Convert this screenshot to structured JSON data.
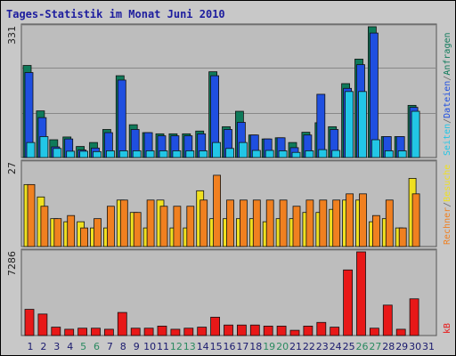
{
  "title": "Tages-Statistik im Monat Juni 2010",
  "colors": {
    "anfragen": "#0f7a5a",
    "dateien": "#1f4fe0",
    "seiten": "#22c6e6",
    "besuche": "#f0e020",
    "rechner": "#f08020",
    "kb": "#e81818",
    "weekend": "#2a8a60",
    "weekday": "#1a1a6e",
    "separator": "#6a6a6a"
  },
  "chart_data": [
    {
      "type": "bar",
      "title": "",
      "y_max_label": "331",
      "ylim": [
        0,
        331
      ],
      "series_labels": [
        "Anfragen",
        "Dateien",
        "Seiten"
      ],
      "categories": [
        "1",
        "2",
        "3",
        "4",
        "5",
        "6",
        "7",
        "8",
        "9",
        "10",
        "11",
        "12",
        "13",
        "14",
        "15",
        "16",
        "17",
        "18",
        "19",
        "20",
        "21",
        "22",
        "23",
        "24",
        "25",
        "26",
        "27",
        "28",
        "29",
        "30",
        "31"
      ],
      "series": [
        {
          "name": "Anfragen",
          "values": [
            233,
            118,
            45,
            52,
            28,
            38,
            71,
            207,
            83,
            63,
            60,
            60,
            60,
            67,
            217,
            78,
            117,
            57,
            47,
            50,
            38,
            64,
            88,
            78,
            187,
            249,
            331,
            53,
            53,
            132,
            0
          ]
        },
        {
          "name": "Dateien",
          "values": [
            215,
            101,
            27,
            47,
            19,
            24,
            63,
            196,
            71,
            63,
            55,
            55,
            55,
            60,
            207,
            71,
            89,
            57,
            47,
            50,
            25,
            57,
            160,
            71,
            175,
            235,
            315,
            53,
            53,
            127,
            0
          ]
        },
        {
          "name": "Seiten",
          "values": [
            38,
            53,
            23,
            16,
            16,
            15,
            17,
            17,
            17,
            17,
            17,
            17,
            17,
            17,
            38,
            23,
            38,
            18,
            18,
            17,
            13,
            17,
            20,
            18,
            167,
            167,
            45,
            17,
            17,
            117,
            0
          ]
        }
      ]
    },
    {
      "type": "bar",
      "title": "",
      "y_max_label": "27",
      "ylim": [
        0,
        27
      ],
      "series_labels": [
        "Besuche",
        "Rechner"
      ],
      "categories": [
        "1",
        "2",
        "3",
        "4",
        "5",
        "6",
        "7",
        "8",
        "9",
        "10",
        "11",
        "12",
        "13",
        "14",
        "15",
        "16",
        "17",
        "18",
        "19",
        "20",
        "21",
        "22",
        "23",
        "24",
        "25",
        "26",
        "27",
        "28",
        "29",
        "30",
        "31"
      ],
      "series": [
        {
          "name": "Besuche",
          "values": [
            20,
            16,
            9,
            8,
            8,
            6,
            6,
            15,
            11,
            6,
            15,
            6,
            6,
            18,
            9,
            9,
            9,
            9,
            8,
            9,
            9,
            11,
            11,
            12,
            15,
            15,
            8,
            9,
            6,
            22,
            0
          ]
        },
        {
          "name": "Rechner",
          "values": [
            20,
            13,
            9,
            10,
            6,
            9,
            13,
            15,
            11,
            15,
            13,
            13,
            13,
            15,
            23,
            15,
            15,
            15,
            15,
            15,
            13,
            15,
            15,
            15,
            17,
            17,
            10,
            15,
            6,
            17,
            0
          ]
        }
      ]
    },
    {
      "type": "bar",
      "title": "",
      "y_max_label": "7286",
      "ylim": [
        0,
        7286
      ],
      "series_labels": [
        "kB"
      ],
      "categories": [
        "1",
        "2",
        "3",
        "4",
        "5",
        "6",
        "7",
        "8",
        "9",
        "10",
        "11",
        "12",
        "13",
        "14",
        "15",
        "16",
        "17",
        "18",
        "19",
        "20",
        "21",
        "22",
        "23",
        "24",
        "25",
        "26",
        "27",
        "28",
        "29",
        "30",
        "31"
      ],
      "series": [
        {
          "name": "kB",
          "values": [
            2283,
            1872,
            731,
            548,
            640,
            640,
            548,
            2009,
            640,
            640,
            822,
            548,
            640,
            731,
            1598,
            914,
            914,
            914,
            822,
            822,
            457,
            822,
            1142,
            731,
            5713,
            7286,
            640,
            2649,
            548,
            3197,
            0
          ]
        }
      ]
    }
  ],
  "right_labels": {
    "top": [
      "Anfragen",
      "Dateien",
      "Seiten"
    ],
    "mid": [
      "Besuche",
      "Rechner"
    ],
    "bottom": [
      "kB"
    ],
    "separator": "/"
  },
  "weekend_days": [
    "5",
    "6",
    "12",
    "13",
    "19",
    "20",
    "26",
    "27"
  ]
}
